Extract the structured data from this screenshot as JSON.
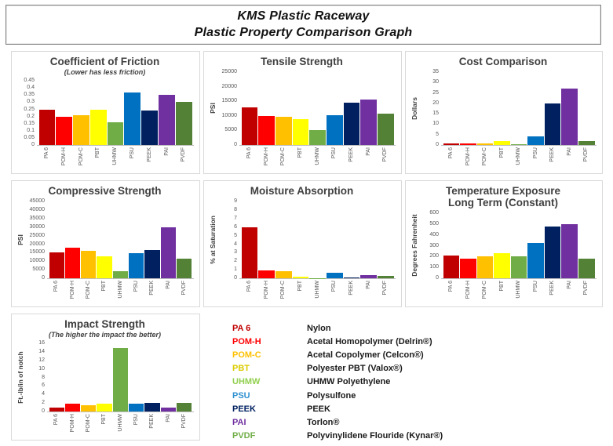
{
  "page_title": {
    "line1": "KMS Plastic Raceway",
    "line2": "Plastic Property Comparison Graph"
  },
  "categories": [
    "PA 6",
    "POM-H",
    "POM-C",
    "PBT",
    "UHMW",
    "PSU",
    "PEEK",
    "PAI",
    "PVDF"
  ],
  "bar_colors": [
    "#C00000",
    "#FF0000",
    "#FFC000",
    "#FFFF00",
    "#70AD47",
    "#0070C0",
    "#002060",
    "#7030A0",
    "#538135"
  ],
  "chart_data": [
    {
      "type": "bar",
      "title": "Coefficient of Friction",
      "subtitle": "(Lower has less friction)",
      "ylabel": "",
      "ymax": 0.45,
      "yticks": [
        "0",
        "0.05",
        "0.1",
        "0.15",
        "0.2",
        "0.25",
        "0.3",
        "0.35",
        "0.4",
        "0.45"
      ],
      "values": [
        0.25,
        0.2,
        0.21,
        0.25,
        0.16,
        0.37,
        0.24,
        0.35,
        0.3
      ]
    },
    {
      "type": "bar",
      "title": "Tensile Strength",
      "subtitle": "",
      "ylabel": "PSI",
      "ymax": 25000,
      "yticks": [
        "0",
        "5000",
        "10000",
        "15000",
        "20000",
        "25000"
      ],
      "values": [
        12800,
        10000,
        9800,
        8800,
        5000,
        10300,
        14500,
        15500,
        10700
      ]
    },
    {
      "type": "bar",
      "title": "Cost Comparison",
      "subtitle": "",
      "ylabel": "Dollars",
      "ymax": 35,
      "yticks": [
        "0",
        "5",
        "10",
        "15",
        "20",
        "25",
        "30",
        "35"
      ],
      "values": [
        0.8,
        0.9,
        0.8,
        2,
        0.3,
        4,
        20,
        27,
        1.8
      ]
    },
    {
      "type": "bar",
      "title": "Compressive Strength",
      "subtitle": "",
      "ylabel": "PSI",
      "ymax": 45000,
      "yticks": [
        "0",
        "5000",
        "10000",
        "15000",
        "20000",
        "25000",
        "30000",
        "35000",
        "40000",
        "45000"
      ],
      "values": [
        15000,
        18000,
        16000,
        13000,
        4000,
        14500,
        16500,
        30000,
        11500
      ]
    },
    {
      "type": "bar",
      "title": "Moisture Absorption",
      "subtitle": "",
      "ylabel": "% at Saturation",
      "ymax": 9,
      "yticks": [
        "0",
        "1",
        "2",
        "3",
        "4",
        "5",
        "6",
        "7",
        "8",
        "9"
      ],
      "values": [
        6,
        0.9,
        0.8,
        0.15,
        0.02,
        0.6,
        0.1,
        0.4,
        0.25
      ]
    },
    {
      "type": "bar",
      "title": "Temperature Exposure\nLong Term (Constant)",
      "subtitle": "",
      "ylabel": "Degrees Fahrenheit",
      "ymax": 600,
      "yticks": [
        "0",
        "100",
        "200",
        "300",
        "400",
        "500",
        "600"
      ],
      "values": [
        210,
        180,
        205,
        230,
        200,
        325,
        480,
        500,
        180
      ]
    },
    {
      "type": "bar",
      "title": "Impact Strength",
      "subtitle": "(The higher the impact the better)",
      "ylabel": "Ft.-lb/in of notch",
      "ymax": 16,
      "yticks": [
        "0",
        "2",
        "4",
        "6",
        "8",
        "10",
        "12",
        "14",
        "16"
      ],
      "values": [
        1,
        1.8,
        1.5,
        1.8,
        15,
        1.8,
        2,
        1,
        2
      ]
    }
  ],
  "legend": {
    "entries": [
      {
        "code": "PA 6",
        "name": "Nylon",
        "color": "#C00000"
      },
      {
        "code": "POM-H",
        "name": "Acetal Homopolymer (Delrin®)",
        "color": "#FF0000"
      },
      {
        "code": "POM-C",
        "name": "Acetal Copolymer (Celcon®)",
        "color": "#FFC000"
      },
      {
        "code": "PBT",
        "name": "Polyester PBT (Valox®)",
        "color": "#DCCC00"
      },
      {
        "code": "UHMW",
        "name": "UHMW Polyethylene",
        "color": "#92D050"
      },
      {
        "code": "PSU",
        "name": "Polysulfone",
        "color": "#2E90D0"
      },
      {
        "code": "PEEK",
        "name": "PEEK",
        "color": "#002060"
      },
      {
        "code": "PAI",
        "name": "Torlon®",
        "color": "#7030A0"
      },
      {
        "code": "PVDF",
        "name": "Polyvinylidene Flouride (Kynar®)",
        "color": "#70AD47"
      }
    ]
  }
}
